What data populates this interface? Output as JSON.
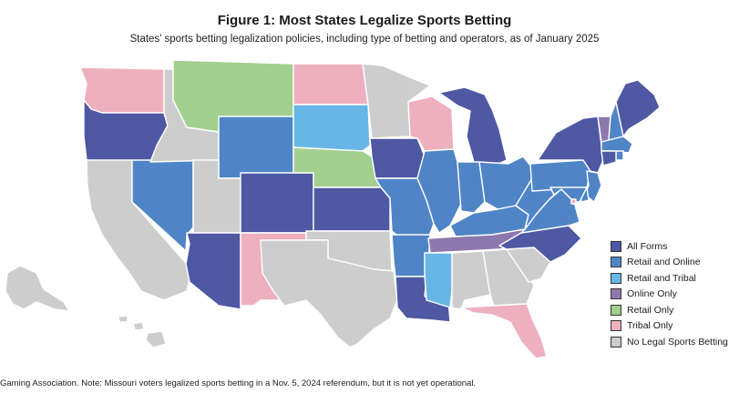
{
  "title": "Figure 1: Most States Legalize Sports Betting",
  "subtitle": "States’ sports betting legalization policies, including type of betting and operators, as of January 2025",
  "footnote": "Gaming Association. Note: Missouri voters legalized sports betting in a Nov. 5, 2024 referendum, but it is not yet operational.",
  "legend": [
    {
      "key": "all",
      "label": "All Forms",
      "color": "#4e58a3"
    },
    {
      "key": "ro",
      "label": "Retail and Online",
      "color": "#4f85c6"
    },
    {
      "key": "rt",
      "label": "Retail and Tribal",
      "color": "#68b6e6"
    },
    {
      "key": "oo",
      "label": "Online Only",
      "color": "#8d78ae"
    },
    {
      "key": "ret",
      "label": "Retail Only",
      "color": "#a3d08f"
    },
    {
      "key": "tr",
      "label": "Tribal Only",
      "color": "#eeb0bf"
    },
    {
      "key": "none",
      "label": "No Legal Sports Betting",
      "color": "#cdcdcd"
    }
  ],
  "states": [
    {
      "name": "Washington",
      "category": "tr"
    },
    {
      "name": "Oregon",
      "category": "all"
    },
    {
      "name": "California",
      "category": "none"
    },
    {
      "name": "Nevada",
      "category": "ro"
    },
    {
      "name": "Idaho",
      "category": "none"
    },
    {
      "name": "Montana",
      "category": "ret"
    },
    {
      "name": "Wyoming",
      "category": "ro"
    },
    {
      "name": "Utah",
      "category": "none"
    },
    {
      "name": "Arizona",
      "category": "all"
    },
    {
      "name": "Colorado",
      "category": "all"
    },
    {
      "name": "New Mexico",
      "category": "tr"
    },
    {
      "name": "North Dakota",
      "category": "tr"
    },
    {
      "name": "South Dakota",
      "category": "rt"
    },
    {
      "name": "Nebraska",
      "category": "ret"
    },
    {
      "name": "Kansas",
      "category": "all"
    },
    {
      "name": "Oklahoma",
      "category": "none"
    },
    {
      "name": "Texas",
      "category": "none"
    },
    {
      "name": "Minnesota",
      "category": "none"
    },
    {
      "name": "Iowa",
      "category": "all"
    },
    {
      "name": "Missouri",
      "category": "ro"
    },
    {
      "name": "Arkansas",
      "category": "ro"
    },
    {
      "name": "Louisiana",
      "category": "all"
    },
    {
      "name": "Wisconsin",
      "category": "tr"
    },
    {
      "name": "Illinois",
      "category": "ro"
    },
    {
      "name": "Michigan",
      "category": "all"
    },
    {
      "name": "Indiana",
      "category": "ro"
    },
    {
      "name": "Ohio",
      "category": "ro"
    },
    {
      "name": "Kentucky",
      "category": "ro"
    },
    {
      "name": "Tennessee",
      "category": "oo"
    },
    {
      "name": "Mississippi",
      "category": "rt"
    },
    {
      "name": "Alabama",
      "category": "none"
    },
    {
      "name": "Georgia",
      "category": "none"
    },
    {
      "name": "Florida",
      "category": "tr"
    },
    {
      "name": "South Carolina",
      "category": "none"
    },
    {
      "name": "North Carolina",
      "category": "all"
    },
    {
      "name": "Virginia",
      "category": "ro"
    },
    {
      "name": "West Virginia",
      "category": "ro"
    },
    {
      "name": "Pennsylvania",
      "category": "ro"
    },
    {
      "name": "New York",
      "category": "all"
    },
    {
      "name": "Vermont",
      "category": "oo"
    },
    {
      "name": "New Hampshire",
      "category": "ro"
    },
    {
      "name": "Maine",
      "category": "all"
    },
    {
      "name": "Massachusetts",
      "category": "ro"
    },
    {
      "name": "Rhode Island",
      "category": "ro"
    },
    {
      "name": "Connecticut",
      "category": "all"
    },
    {
      "name": "New Jersey",
      "category": "ro"
    },
    {
      "name": "Delaware",
      "category": "ro"
    },
    {
      "name": "Maryland",
      "category": "ro"
    },
    {
      "name": "District of Columbia",
      "category": "tr"
    },
    {
      "name": "Alaska",
      "category": "none"
    },
    {
      "name": "Hawaii",
      "category": "none"
    }
  ]
}
